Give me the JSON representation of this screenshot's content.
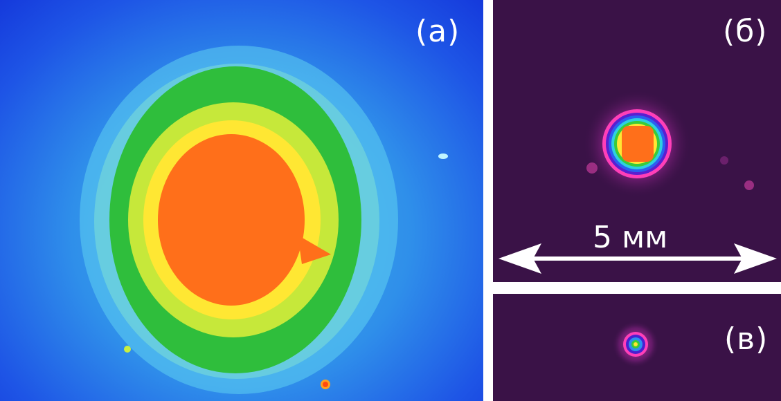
{
  "panels": [
    {
      "label": "(а)"
    },
    {
      "label": "(б)"
    },
    {
      "label": "(в)"
    }
  ],
  "scale_bar": {
    "text": "5 мм"
  },
  "colors": {
    "background_a": "#1e55e6",
    "background_bc": "#3a1247",
    "core": "#ff6f1a",
    "ring_yellow": "#ffee33",
    "ring_green": "#33c83a",
    "ring_cyan": "#56d6f0"
  }
}
